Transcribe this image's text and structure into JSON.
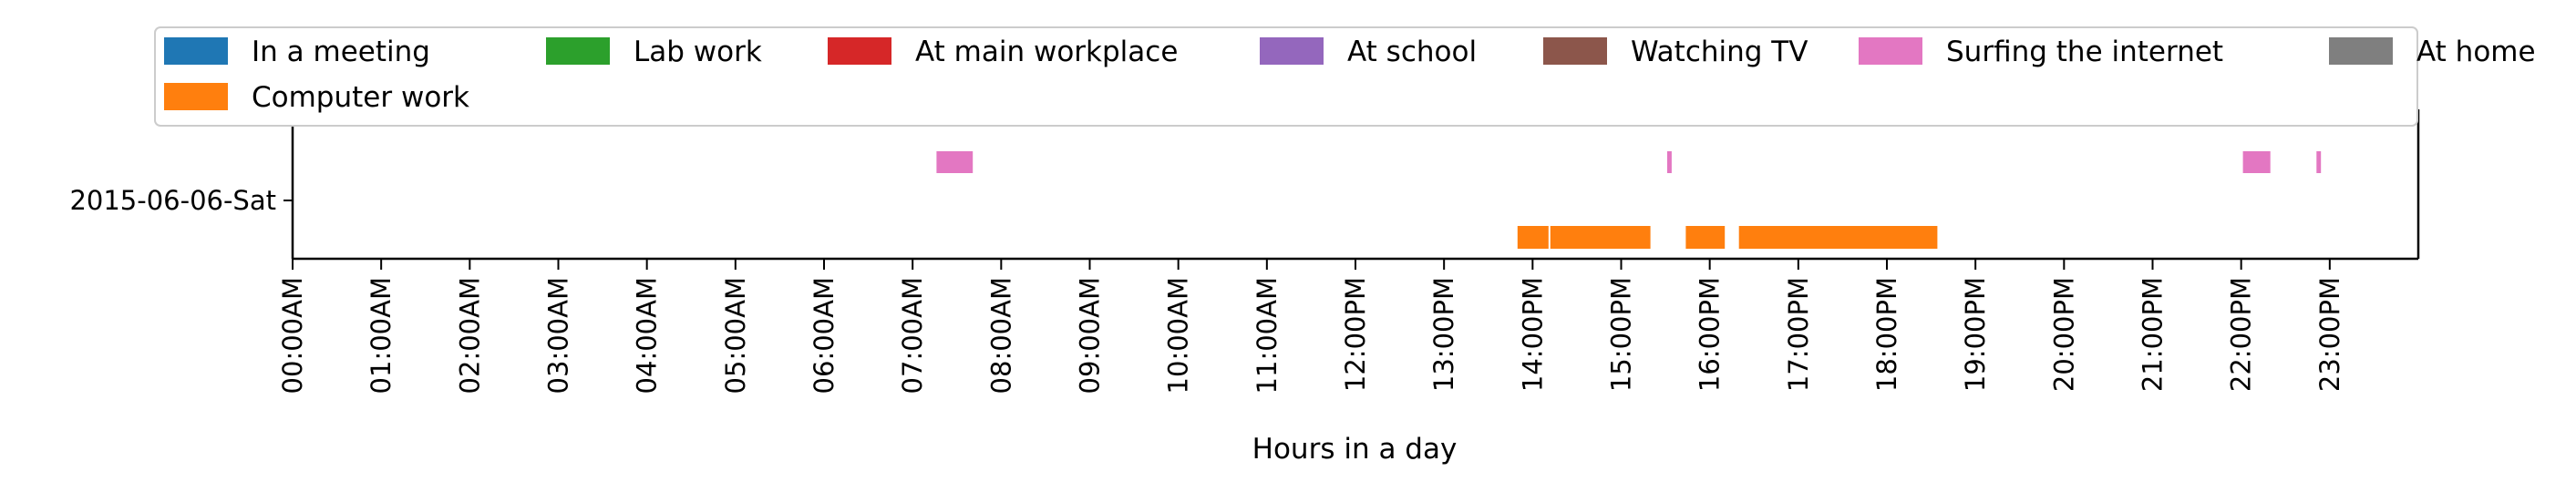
{
  "chart_data": {
    "type": "timeline",
    "title": "",
    "xlabel": "Hours in a day",
    "ylabel": "",
    "xlim": [
      0,
      24
    ],
    "y_categories": [
      "2015-06-06-Sat"
    ],
    "x_tick_labels": [
      "00:00AM",
      "01:00AM",
      "02:00AM",
      "03:00AM",
      "04:00AM",
      "05:00AM",
      "06:00AM",
      "07:00AM",
      "08:00AM",
      "09:00AM",
      "10:00AM",
      "11:00AM",
      "12:00PM",
      "13:00PM",
      "14:00PM",
      "15:00PM",
      "16:00PM",
      "17:00PM",
      "18:00PM",
      "19:00PM",
      "20:00PM",
      "21:00PM",
      "22:00PM",
      "23:00PM"
    ],
    "legend_placement": "top",
    "series": [
      {
        "name": "In a meeting",
        "color": "#1f77b4",
        "intervals": []
      },
      {
        "name": "Lab work",
        "color": "#2ca02c",
        "intervals": []
      },
      {
        "name": "At main workplace",
        "color": "#d62728",
        "intervals": []
      },
      {
        "name": "At school",
        "color": "#9467bd",
        "intervals": []
      },
      {
        "name": "Watching TV",
        "color": "#8c564b",
        "intervals": []
      },
      {
        "name": "Surfing the internet",
        "color": "#e377c2",
        "intervals": [
          [
            7.27,
            7.68
          ],
          [
            15.52,
            15.57
          ],
          [
            22.02,
            22.33
          ],
          [
            22.85,
            22.9
          ]
        ]
      },
      {
        "name": "At home",
        "color": "#7f7f7f",
        "intervals": []
      },
      {
        "name": "Computer work",
        "color": "#ff7f0e",
        "intervals": [
          [
            13.83,
            14.18
          ],
          [
            14.2,
            15.33
          ],
          [
            15.73,
            16.17
          ],
          [
            16.33,
            18.57
          ]
        ]
      }
    ]
  }
}
